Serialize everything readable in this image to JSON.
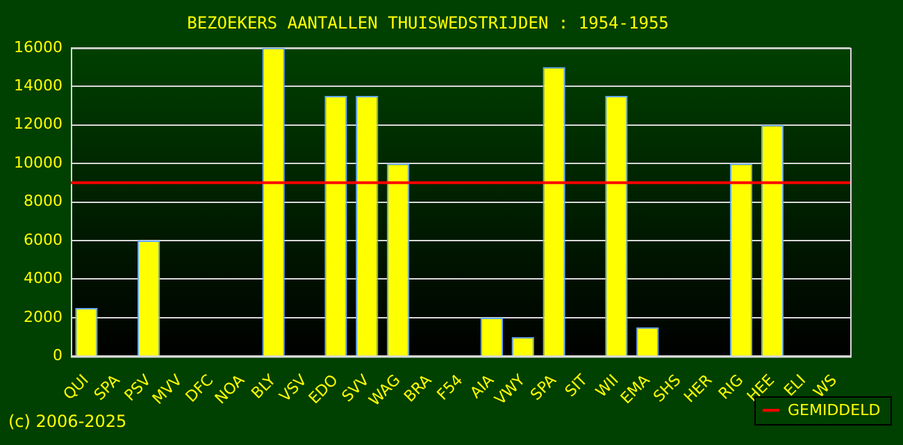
{
  "chart_data": {
    "type": "bar",
    "title": "BEZOEKERS AANTALLEN THUISWEDSTRIJDEN : 1954-1955",
    "categories": [
      "QUI",
      "SPA",
      "PSV",
      "MVV",
      "DFC",
      "NOA",
      "BLY",
      "VSV",
      "EDO",
      "SVV",
      "WAG",
      "BRA",
      "F54",
      "AIA",
      "VWY",
      "SPA",
      "SIT",
      "WII",
      "EMA",
      "SHS",
      "HER",
      "RIG",
      "HEE",
      "ELI",
      "WS"
    ],
    "values": [
      2500,
      null,
      6000,
      null,
      null,
      null,
      16000,
      null,
      13500,
      13500,
      10000,
      null,
      null,
      2000,
      1000,
      15000,
      null,
      13500,
      1500,
      null,
      null,
      10000,
      12000,
      null,
      null
    ],
    "color": "#ffff00",
    "ylim": [
      0,
      16000
    ],
    "yticks": [
      0,
      2000,
      4000,
      6000,
      8000,
      10000,
      12000,
      14000,
      16000
    ],
    "grid": "y",
    "ref_lines": [
      {
        "axis": "y",
        "value": 9000,
        "label": "GEMIDDELD",
        "color": "#ff0000"
      }
    ],
    "annotations": [
      "(c) 2006-2025"
    ]
  }
}
